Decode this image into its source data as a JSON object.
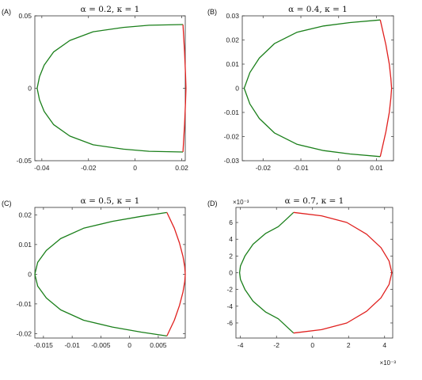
{
  "colors": {
    "green": "#1a7f1a",
    "red": "#e0201e",
    "axis": "#333333"
  },
  "chart_data": [
    {
      "type": "line",
      "panel_label": "(A)",
      "title": "α = 0.2, κ = 1",
      "xlim": [
        -0.043,
        0.0215
      ],
      "ylim": [
        -0.05,
        0.05
      ],
      "xticks": [
        -0.04,
        -0.02,
        0,
        0.02
      ],
      "xtick_labels": [
        "-0.04",
        "-0.02",
        "0",
        "0.02"
      ],
      "yticks": [
        -0.05,
        0,
        0.05
      ],
      "ytick_labels": [
        "-0.05",
        "0",
        "0.05"
      ],
      "x_exponent": "",
      "y_exponent": "",
      "series": [
        {
          "color": "green",
          "x": [
            0.0205,
            0.006,
            -0.005,
            -0.018,
            -0.028,
            -0.035,
            -0.039,
            -0.041,
            -0.042,
            -0.041,
            -0.039,
            -0.035,
            -0.028,
            -0.018,
            -0.005,
            0.006,
            0.0205
          ],
          "y": [
            0.044,
            0.0435,
            0.042,
            0.039,
            0.033,
            0.025,
            0.016,
            0.008,
            0,
            -0.008,
            -0.016,
            -0.025,
            -0.033,
            -0.039,
            -0.042,
            -0.0435,
            -0.044
          ]
        },
        {
          "color": "red",
          "x": [
            0.0205,
            0.0212,
            0.0216,
            0.0218,
            0.0216,
            0.0212,
            0.0205
          ],
          "y": [
            0.044,
            0.025,
            0.01,
            0,
            -0.01,
            -0.025,
            -0.044
          ]
        }
      ]
    },
    {
      "type": "line",
      "panel_label": "(B)",
      "title": "α = 0.4, κ = 1",
      "xlim": [
        -0.0255,
        0.0145
      ],
      "ylim": [
        -0.03,
        0.03
      ],
      "xticks": [
        -0.02,
        -0.01,
        0,
        0.01
      ],
      "xtick_labels": [
        "-0.02",
        "-0.01",
        "0",
        "0.01"
      ],
      "yticks": [
        -0.03,
        -0.02,
        -0.01,
        0,
        0.01,
        0.02,
        0.03
      ],
      "ytick_labels": [
        "-0.03",
        "-0.02",
        "-0.01",
        "0",
        "0.01",
        "0.02",
        "0.03"
      ],
      "x_exponent": "",
      "y_exponent": "",
      "series": [
        {
          "color": "green",
          "x": [
            0.011,
            0.003,
            -0.004,
            -0.011,
            -0.017,
            -0.021,
            -0.0235,
            -0.025,
            -0.0235,
            -0.021,
            -0.017,
            -0.011,
            -0.004,
            0.003,
            0.011
          ],
          "y": [
            0.0283,
            0.0272,
            0.0258,
            0.0232,
            0.0185,
            0.0125,
            0.0065,
            0,
            -0.0065,
            -0.0125,
            -0.0185,
            -0.0232,
            -0.0258,
            -0.0272,
            -0.0283
          ]
        },
        {
          "color": "red",
          "x": [
            0.011,
            0.0125,
            0.0134,
            0.0138,
            0.014,
            0.0138,
            0.0134,
            0.0125,
            0.011
          ],
          "y": [
            0.0283,
            0.018,
            0.01,
            0.004,
            0,
            -0.004,
            -0.01,
            -0.018,
            -0.0283
          ]
        }
      ]
    },
    {
      "type": "line",
      "panel_label": "(C)",
      "title": "α = 0.5, κ = 1",
      "xlim": [
        -0.0165,
        0.0097
      ],
      "ylim": [
        -0.0215,
        0.0225
      ],
      "xticks": [
        -0.015,
        -0.01,
        -0.005,
        0,
        0.005
      ],
      "xtick_labels": [
        "-0.015",
        "-0.01",
        "-0.005",
        "0",
        "0.005"
      ],
      "yticks": [
        -0.02,
        -0.01,
        0,
        0.01,
        0.02
      ],
      "ytick_labels": [
        "-0.02",
        "-0.01",
        "0",
        "0.01",
        "0.02"
      ],
      "x_exponent": "",
      "y_exponent": "",
      "series": [
        {
          "color": "green",
          "x": [
            0.0065,
            0.002,
            -0.003,
            -0.008,
            -0.012,
            -0.0145,
            -0.016,
            -0.0165,
            -0.016,
            -0.0145,
            -0.012,
            -0.008,
            -0.003,
            0.002,
            0.0065
          ],
          "y": [
            0.0208,
            0.0195,
            0.0178,
            0.0155,
            0.012,
            0.008,
            0.004,
            0,
            -0.004,
            -0.008,
            -0.012,
            -0.0155,
            -0.0178,
            -0.0195,
            -0.0208
          ]
        },
        {
          "color": "red",
          "x": [
            0.0065,
            0.0078,
            0.0087,
            0.0093,
            0.0096,
            0.0097,
            0.0096,
            0.0093,
            0.0087,
            0.0078,
            0.0065
          ],
          "y": [
            0.0208,
            0.0155,
            0.0105,
            0.006,
            0.0025,
            0,
            -0.0025,
            -0.006,
            -0.0105,
            -0.0155,
            -0.0208
          ]
        }
      ]
    },
    {
      "type": "line",
      "panel_label": "(D)",
      "title": "α = 0.7, κ = 1",
      "xlim": [
        -4.25,
        4.45
      ],
      "ylim": [
        -7.8,
        7.8
      ],
      "xticks": [
        -4,
        -2,
        0,
        2,
        4
      ],
      "xtick_labels": [
        "-4",
        "-2",
        "0",
        "2",
        "4"
      ],
      "yticks": [
        -6,
        -4,
        -2,
        0,
        2,
        4,
        6
      ],
      "ytick_labels": [
        "-6",
        "-4",
        "-2",
        "0",
        "2",
        "4",
        "6"
      ],
      "x_exponent": "×10⁻³",
      "y_exponent": "×10⁻³",
      "series": [
        {
          "color": "green",
          "x": [
            -1.05,
            -1.4,
            -1.9,
            -2.6,
            -3.3,
            -3.75,
            -4.0,
            -4.05,
            -4.0,
            -3.75,
            -3.3,
            -2.6,
            -1.9,
            -1.4,
            -1.05
          ],
          "y": [
            7.2,
            6.5,
            5.5,
            4.7,
            3.4,
            2.0,
            0.8,
            0,
            -0.8,
            -2.0,
            -3.4,
            -4.7,
            -5.5,
            -6.5,
            -7.2
          ]
        },
        {
          "color": "red",
          "x": [
            -1.05,
            0.5,
            1.9,
            3.0,
            3.8,
            4.25,
            4.4,
            4.25,
            3.8,
            3.0,
            1.9,
            0.5,
            -1.05
          ],
          "y": [
            7.2,
            6.8,
            6.0,
            4.6,
            3.0,
            1.4,
            0,
            -1.4,
            -3.0,
            -4.6,
            -6.0,
            -6.8,
            -7.2
          ]
        }
      ]
    }
  ]
}
